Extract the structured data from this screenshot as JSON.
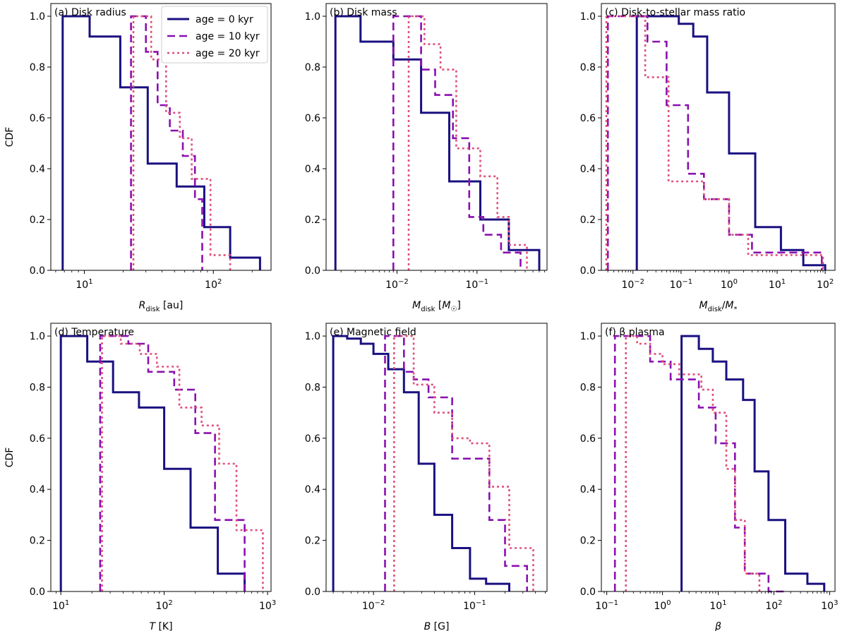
{
  "figure": {
    "legend": [
      {
        "label": "age = 0 kyr",
        "color": "#1a1080",
        "style": "solid"
      },
      {
        "label": "age = 10 kyr",
        "color": "#8a10b0",
        "style": "dashed"
      },
      {
        "label": "age = 20 kyr",
        "color": "#e0507a",
        "style": "dotted"
      }
    ]
  },
  "chart_data": [
    {
      "type": "line",
      "step": "post",
      "panel_title": "(a) Disk radius",
      "xlabel": "R_disk [au]",
      "ylabel": "CDF",
      "xscale": "log",
      "xlim": [
        5.5,
        280
      ],
      "ylim": [
        0,
        1.05
      ],
      "xticks": [
        10,
        100
      ],
      "yticks": [
        0.0,
        0.2,
        0.4,
        0.6,
        0.8,
        1.0
      ],
      "series": [
        {
          "name": "age = 0 kyr",
          "x": [
            6.8,
            11,
            19,
            31,
            52,
            85,
            135,
            230
          ],
          "y": [
            1.0,
            0.92,
            0.72,
            0.42,
            0.33,
            0.17,
            0.05,
            0.0
          ]
        },
        {
          "name": "age = 10 kyr",
          "x": [
            23,
            30,
            37,
            46,
            58,
            72,
            82
          ],
          "y": [
            1.0,
            0.86,
            0.65,
            0.55,
            0.45,
            0.28,
            0.0
          ]
        },
        {
          "name": "age = 20 kyr",
          "x": [
            24,
            33,
            43,
            55,
            68,
            95,
            135
          ],
          "y": [
            1.0,
            0.83,
            0.62,
            0.52,
            0.36,
            0.06,
            0.0
          ]
        }
      ]
    },
    {
      "type": "line",
      "step": "post",
      "panel_title": "(b) Disk mass",
      "xlabel": "M_disk [M_☉]",
      "ylabel": "",
      "xscale": "log",
      "xlim": [
        0.0013,
        0.75
      ],
      "ylim": [
        0,
        1.05
      ],
      "xticks": [
        0.01,
        0.1
      ],
      "yticks": [
        0.0,
        0.2,
        0.4,
        0.6,
        0.8,
        1.0
      ],
      "series": [
        {
          "name": "age = 0 kyr",
          "x": [
            0.0017,
            0.0035,
            0.009,
            0.02,
            0.045,
            0.11,
            0.25,
            0.6
          ],
          "y": [
            1.0,
            0.9,
            0.83,
            0.62,
            0.35,
            0.2,
            0.08,
            0.0
          ]
        },
        {
          "name": "age = 10 kyr",
          "x": [
            0.009,
            0.02,
            0.03,
            0.05,
            0.08,
            0.12,
            0.2,
            0.35
          ],
          "y": [
            1.0,
            0.79,
            0.69,
            0.52,
            0.21,
            0.14,
            0.07,
            0.0
          ]
        },
        {
          "name": "age = 20 kyr",
          "x": [
            0.014,
            0.022,
            0.035,
            0.055,
            0.11,
            0.18,
            0.25,
            0.42
          ],
          "y": [
            1.0,
            0.89,
            0.79,
            0.48,
            0.37,
            0.21,
            0.1,
            0.0
          ]
        }
      ]
    },
    {
      "type": "line",
      "step": "post",
      "panel_title": "(c) Disk-to-stellar mass ratio",
      "xlabel": "M_disk/M_*",
      "ylabel": "",
      "xscale": "log",
      "xlim": [
        0.0022,
        160
      ],
      "ylim": [
        0,
        1.05
      ],
      "xticks": [
        0.01,
        0.1,
        1,
        10,
        100
      ],
      "yticks": [
        0.0,
        0.2,
        0.4,
        0.6,
        0.8,
        1.0
      ],
      "series": [
        {
          "name": "age = 0 kyr",
          "x": [
            0.012,
            0.09,
            0.18,
            0.35,
            1.0,
            3.5,
            12,
            35,
            100
          ],
          "y": [
            1.0,
            0.97,
            0.92,
            0.7,
            0.46,
            0.17,
            0.08,
            0.02,
            0.0
          ]
        },
        {
          "name": "age = 10 kyr",
          "x": [
            0.003,
            0.02,
            0.05,
            0.14,
            0.3,
            1.0,
            3.0,
            30,
            85
          ],
          "y": [
            1.0,
            0.9,
            0.65,
            0.38,
            0.28,
            0.14,
            0.07,
            0.07,
            0.0
          ]
        },
        {
          "name": "age = 20 kyr",
          "x": [
            0.0028,
            0.018,
            0.055,
            0.3,
            1.0,
            2.5,
            90
          ],
          "y": [
            1.0,
            0.76,
            0.35,
            0.28,
            0.14,
            0.06,
            0.0
          ]
        }
      ]
    },
    {
      "type": "line",
      "step": "post",
      "panel_title": "(d) Temperature",
      "xlabel": "T [K]",
      "ylabel": "CDF",
      "xscale": "log",
      "xlim": [
        8,
        1080
      ],
      "ylim": [
        0,
        1.05
      ],
      "xticks": [
        10,
        100,
        1000
      ],
      "yticks": [
        0.0,
        0.2,
        0.4,
        0.6,
        0.8,
        1.0
      ],
      "series": [
        {
          "name": "age = 0 kyr",
          "x": [
            10,
            18,
            32,
            57,
            100,
            180,
            330,
            600
          ],
          "y": [
            1.0,
            0.9,
            0.78,
            0.72,
            0.48,
            0.25,
            0.07,
            0.0
          ]
        },
        {
          "name": "age = 10 kyr",
          "x": [
            24,
            45,
            70,
            125,
            200,
            310,
            600
          ],
          "y": [
            1.0,
            0.97,
            0.86,
            0.79,
            0.62,
            0.28,
            0.0
          ]
        },
        {
          "name": "age = 20 kyr",
          "x": [
            25,
            38,
            58,
            85,
            140,
            230,
            340,
            500,
            900
          ],
          "y": [
            1.0,
            0.97,
            0.93,
            0.88,
            0.72,
            0.65,
            0.5,
            0.24,
            0.0
          ]
        }
      ]
    },
    {
      "type": "line",
      "step": "post",
      "panel_title": "(e) Magnetic field",
      "xlabel": "B [G]",
      "ylabel": "",
      "xscale": "log",
      "xlim": [
        0.0034,
        0.52
      ],
      "ylim": [
        0,
        1.05
      ],
      "xticks": [
        0.01,
        0.1
      ],
      "yticks": [
        0.0,
        0.2,
        0.4,
        0.6,
        0.8,
        1.0
      ],
      "series": [
        {
          "name": "age = 0 kyr",
          "x": [
            0.004,
            0.0055,
            0.0075,
            0.01,
            0.014,
            0.02,
            0.028,
            0.04,
            0.06,
            0.09,
            0.13,
            0.22
          ],
          "y": [
            1.0,
            0.99,
            0.97,
            0.93,
            0.87,
            0.78,
            0.5,
            0.3,
            0.17,
            0.05,
            0.03,
            0.0
          ]
        },
        {
          "name": "age = 10 kyr",
          "x": [
            0.013,
            0.02,
            0.025,
            0.035,
            0.06,
            0.14,
            0.2,
            0.33
          ],
          "y": [
            1.0,
            0.86,
            0.83,
            0.76,
            0.52,
            0.28,
            0.1,
            0.0
          ]
        },
        {
          "name": "age = 20 kyr",
          "x": [
            0.016,
            0.025,
            0.04,
            0.06,
            0.09,
            0.14,
            0.22,
            0.38
          ],
          "y": [
            1.0,
            0.81,
            0.7,
            0.6,
            0.58,
            0.41,
            0.17,
            0.0
          ]
        }
      ]
    },
    {
      "type": "line",
      "step": "post",
      "panel_title": "(f) β plasma",
      "xlabel": "β",
      "ylabel": "",
      "xscale": "log",
      "xlim": [
        0.08,
        1250
      ],
      "ylim": [
        0,
        1.05
      ],
      "xticks": [
        0.1,
        1,
        10,
        100,
        1000
      ],
      "yticks": [
        0.0,
        0.2,
        0.4,
        0.6,
        0.8,
        1.0
      ],
      "series": [
        {
          "name": "age = 0 kyr",
          "x": [
            2.2,
            4.5,
            8,
            14,
            28,
            45,
            80,
            160,
            400,
            800
          ],
          "y": [
            1.0,
            0.95,
            0.9,
            0.83,
            0.75,
            0.47,
            0.28,
            0.07,
            0.03,
            0.0
          ]
        },
        {
          "name": "age = 10 kyr",
          "x": [
            0.14,
            0.6,
            1.4,
            4.5,
            9,
            20,
            30,
            80,
            150
          ],
          "y": [
            1.0,
            0.9,
            0.83,
            0.72,
            0.58,
            0.25,
            0.07,
            0.0,
            0.0
          ]
        },
        {
          "name": "age = 20 kyr",
          "x": [
            0.22,
            0.35,
            0.6,
            1.0,
            2.0,
            5.0,
            8,
            14,
            20,
            30,
            55
          ],
          "y": [
            1.0,
            0.97,
            0.93,
            0.89,
            0.85,
            0.79,
            0.7,
            0.48,
            0.28,
            0.07,
            0.0
          ]
        }
      ]
    }
  ]
}
